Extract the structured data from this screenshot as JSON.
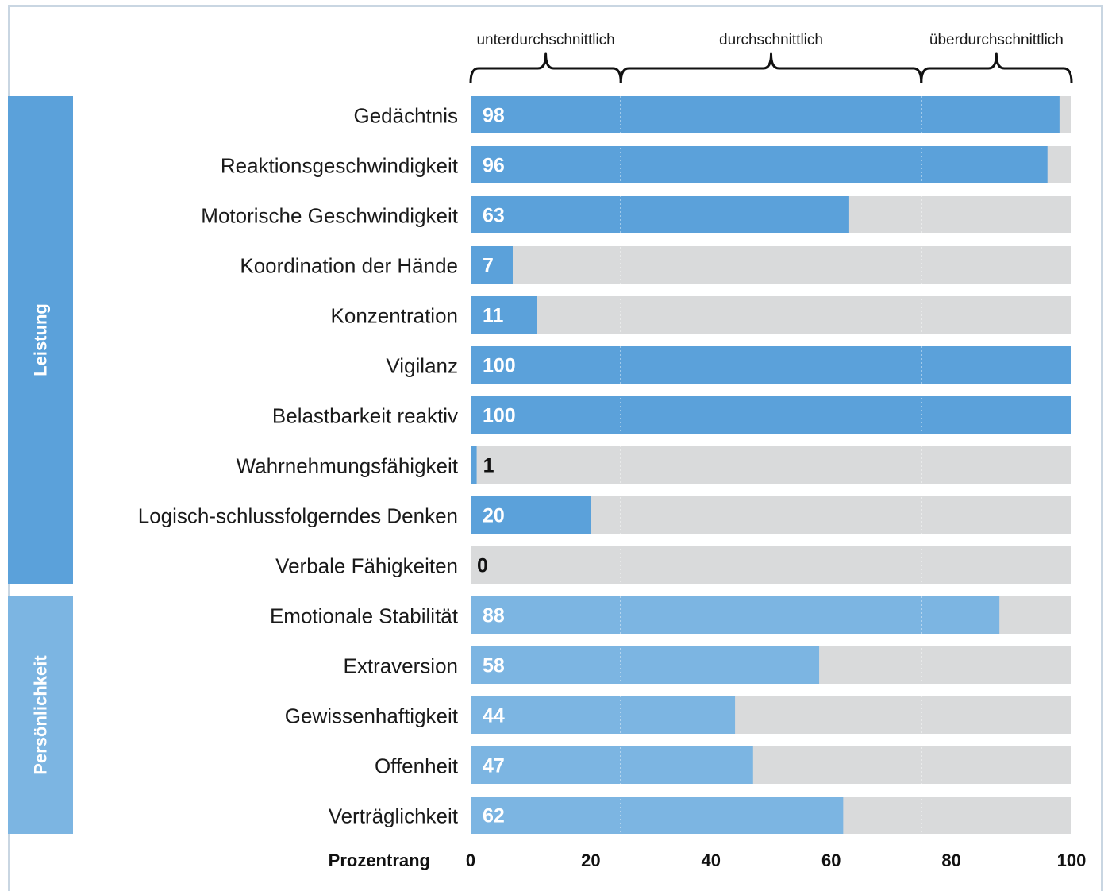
{
  "chart_data": {
    "type": "bar",
    "orientation": "horizontal",
    "categories": [
      "Gedächtnis",
      "Reaktionsgeschwindigkeit",
      "Motorische Geschwindigkeit",
      "Koordination der Hände",
      "Konzentration",
      "Vigilanz",
      "Belastbarkeit reaktiv",
      "Wahrnehmungsfähigkeit",
      "Logisch-schlussfolgerndes Denken",
      "Verbale Fähigkeiten",
      "Emotionale Stabilität",
      "Extraversion",
      "Gewissenhaftigkeit",
      "Offenheit",
      "Verträglichkeit"
    ],
    "values": [
      98,
      96,
      63,
      7,
      11,
      100,
      100,
      1,
      20,
      0,
      88,
      58,
      44,
      47,
      62
    ],
    "groups": [
      {
        "name": "Leistung",
        "count": 10,
        "color": "#5ba1da"
      },
      {
        "name": "Persönlichkeit",
        "count": 5,
        "color": "#7cb5e2"
      }
    ],
    "bands": [
      {
        "label": "unterdurchschnittlich",
        "from": 0,
        "to": 25
      },
      {
        "label": "durchschnittlich",
        "from": 25,
        "to": 75
      },
      {
        "label": "überdurchschnittlich",
        "from": 75,
        "to": 100
      }
    ],
    "xlabel": "Prozentrang",
    "xticks": [
      0,
      20,
      40,
      60,
      80,
      100
    ],
    "xlim": [
      0,
      100
    ],
    "track_color": "#d9dadb",
    "grid": false
  }
}
